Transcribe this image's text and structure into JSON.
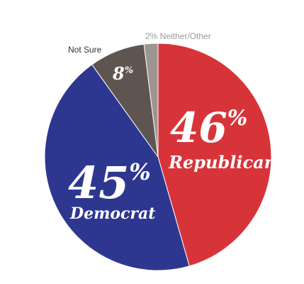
{
  "chart_data": {
    "type": "pie",
    "slices": [
      {
        "key": "republican",
        "value": 46,
        "label": "Republican",
        "value_text": "46",
        "color": "#d7343a"
      },
      {
        "key": "democrat",
        "value": 45,
        "label": "Democrat",
        "value_text": "45",
        "color": "#2e3790"
      },
      {
        "key": "notsure",
        "value": 8,
        "label": "Not Sure",
        "value_text": "8",
        "color": "#5e5550"
      },
      {
        "key": "neither",
        "value": 2,
        "label": "Neither/Other",
        "value_text": "2",
        "color": "#9d9592"
      }
    ],
    "percent_sign": "%",
    "neither_label": "2% Neither/Other",
    "notsure_outside_label": "Not Sure",
    "outside_label_colors": {
      "notsure": "#333333",
      "neither": "#9a9a9a"
    }
  }
}
